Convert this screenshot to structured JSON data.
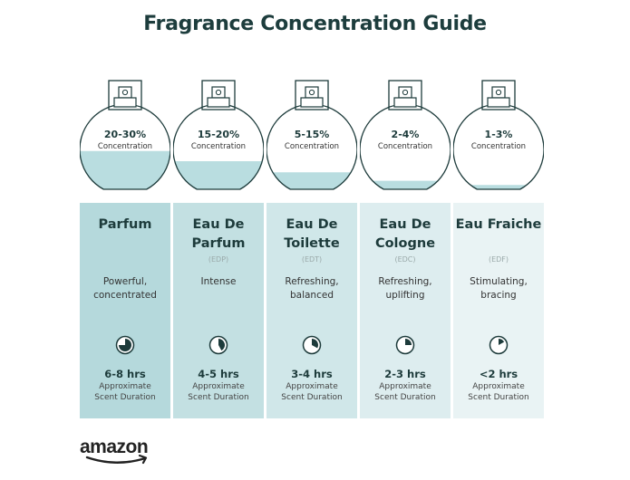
{
  "title": "Fragrance Concentration Guide",
  "colors": {
    "title": "#1d3d3d",
    "liquid": "#b9dde0",
    "panel_dark": "#b7dadd",
    "panel_light": "#eaf4f5",
    "outline": "#1d3b3b"
  },
  "columns": [
    {
      "concentration": "20-30%",
      "concentration_label": "Concentration",
      "fill_level": 0.45,
      "name": "Parfum",
      "abbr": "",
      "description": "Powerful, concentrated",
      "duration": "6-8 hrs",
      "duration_label_1": "Approximate",
      "duration_label_2": "Scent Duration",
      "clock_fraction": 0.75,
      "panel_color": "#b5d9dc"
    },
    {
      "concentration": "15-20%",
      "concentration_label": "Concentration",
      "fill_level": 0.33,
      "name": "Eau De Parfum",
      "abbr": "(EDP)",
      "description": "Intense",
      "duration": "4-5 hrs",
      "duration_label_1": "Approximate",
      "duration_label_2": "Scent Duration",
      "clock_fraction": 0.42,
      "panel_color": "#c3e0e2"
    },
    {
      "concentration": "5-15%",
      "concentration_label": "Concentration",
      "fill_level": 0.2,
      "name": "Eau De Toilette",
      "abbr": "(EDT)",
      "description": "Refreshing, balanced",
      "duration": "3-4 hrs",
      "duration_label_1": "Approximate",
      "duration_label_2": "Scent Duration",
      "clock_fraction": 0.33,
      "panel_color": "#d0e7e9"
    },
    {
      "concentration": "2-4%",
      "concentration_label": "Concentration",
      "fill_level": 0.1,
      "name": "Eau De Cologne",
      "abbr": "(EDC)",
      "description": "Refreshing, uplifting",
      "duration": "2-3 hrs",
      "duration_label_1": "Approximate",
      "duration_label_2": "Scent Duration",
      "clock_fraction": 0.25,
      "panel_color": "#ddedef"
    },
    {
      "concentration": "1-3%",
      "concentration_label": "Concentration",
      "fill_level": 0.05,
      "name": "Eau Fraiche",
      "abbr": "(EDF)",
      "description": "Stimulating, bracing",
      "duration": "<2 hrs",
      "duration_label_1": "Approximate",
      "duration_label_2": "Scent Duration",
      "clock_fraction": 0.17,
      "panel_color": "#e9f3f4"
    }
  ],
  "logo": {
    "text": "amazon"
  }
}
